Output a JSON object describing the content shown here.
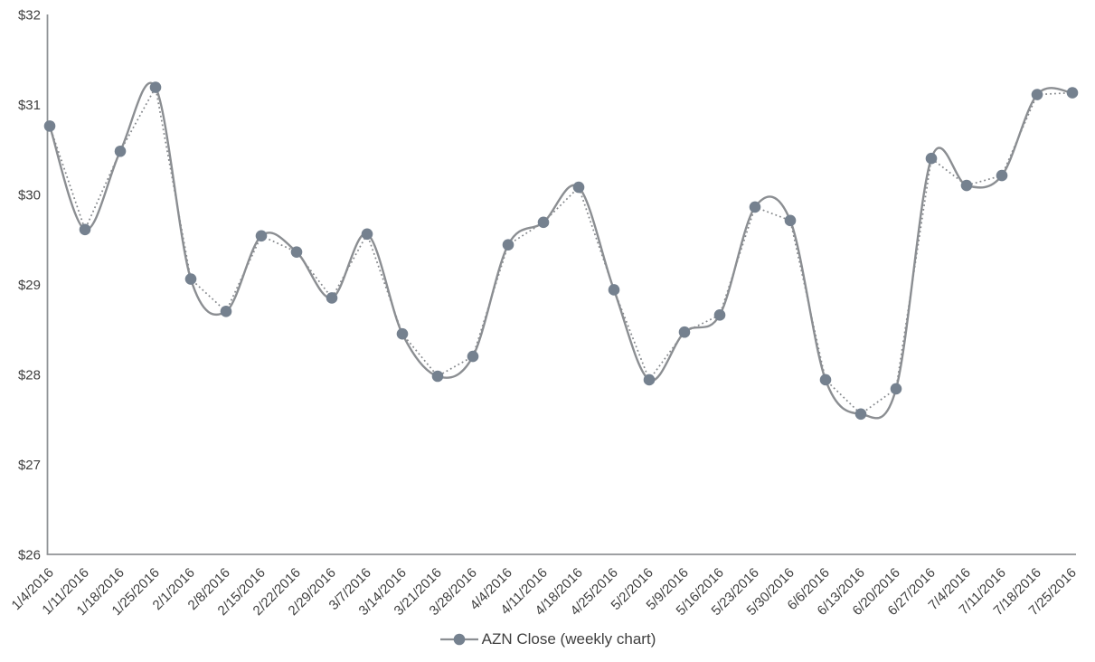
{
  "chart_data": {
    "type": "line",
    "title": "",
    "xlabel": "",
    "ylabel": "",
    "categories": [
      "1/4/2016",
      "1/11/2016",
      "1/18/2016",
      "1/25/2016",
      "2/1/2016",
      "2/8/2016",
      "2/15/2016",
      "2/22/2016",
      "2/29/2016",
      "3/7/2016",
      "3/14/2016",
      "3/21/2016",
      "3/28/2016",
      "4/4/2016",
      "4/11/2016",
      "4/18/2016",
      "4/25/2016",
      "5/2/2016",
      "5/9/2016",
      "5/16/2016",
      "5/23/2016",
      "5/30/2016",
      "6/6/2016",
      "6/13/2016",
      "6/20/2016",
      "6/27/2016",
      "7/4/2016",
      "7/11/2016",
      "7/18/2016",
      "7/25/2016"
    ],
    "series": [
      {
        "name": "AZN Close (weekly chart)",
        "values": [
          30.76,
          29.61,
          30.48,
          31.19,
          29.06,
          28.7,
          29.54,
          29.36,
          28.85,
          29.56,
          28.45,
          27.98,
          28.2,
          29.44,
          29.69,
          30.08,
          28.94,
          27.94,
          28.47,
          28.66,
          29.86,
          29.71,
          27.94,
          27.56,
          27.84,
          30.4,
          30.1,
          30.21,
          31.11,
          31.13
        ],
        "marker": "circle",
        "renderings": [
          "smooth-solid-line",
          "straight-dotted-line-through-markers"
        ]
      }
    ],
    "ylim": [
      26,
      32
    ],
    "y_tick_labels": [
      "$26",
      "$27",
      "$28",
      "$29",
      "$30",
      "$31",
      "$32"
    ],
    "x_tick_label_rotation_deg": -45,
    "grid": false,
    "legend_position": "bottom-center"
  },
  "legend": {
    "label": "AZN Close (weekly chart)"
  },
  "colors": {
    "background": "#ffffff",
    "solid_line": "#8b8e92",
    "dotted_line": "#85888c",
    "marker_fill": "#75818f",
    "axis_line": "#909396",
    "tick_text": "#3f3f3f",
    "legend_text": "#3f3f3f"
  }
}
